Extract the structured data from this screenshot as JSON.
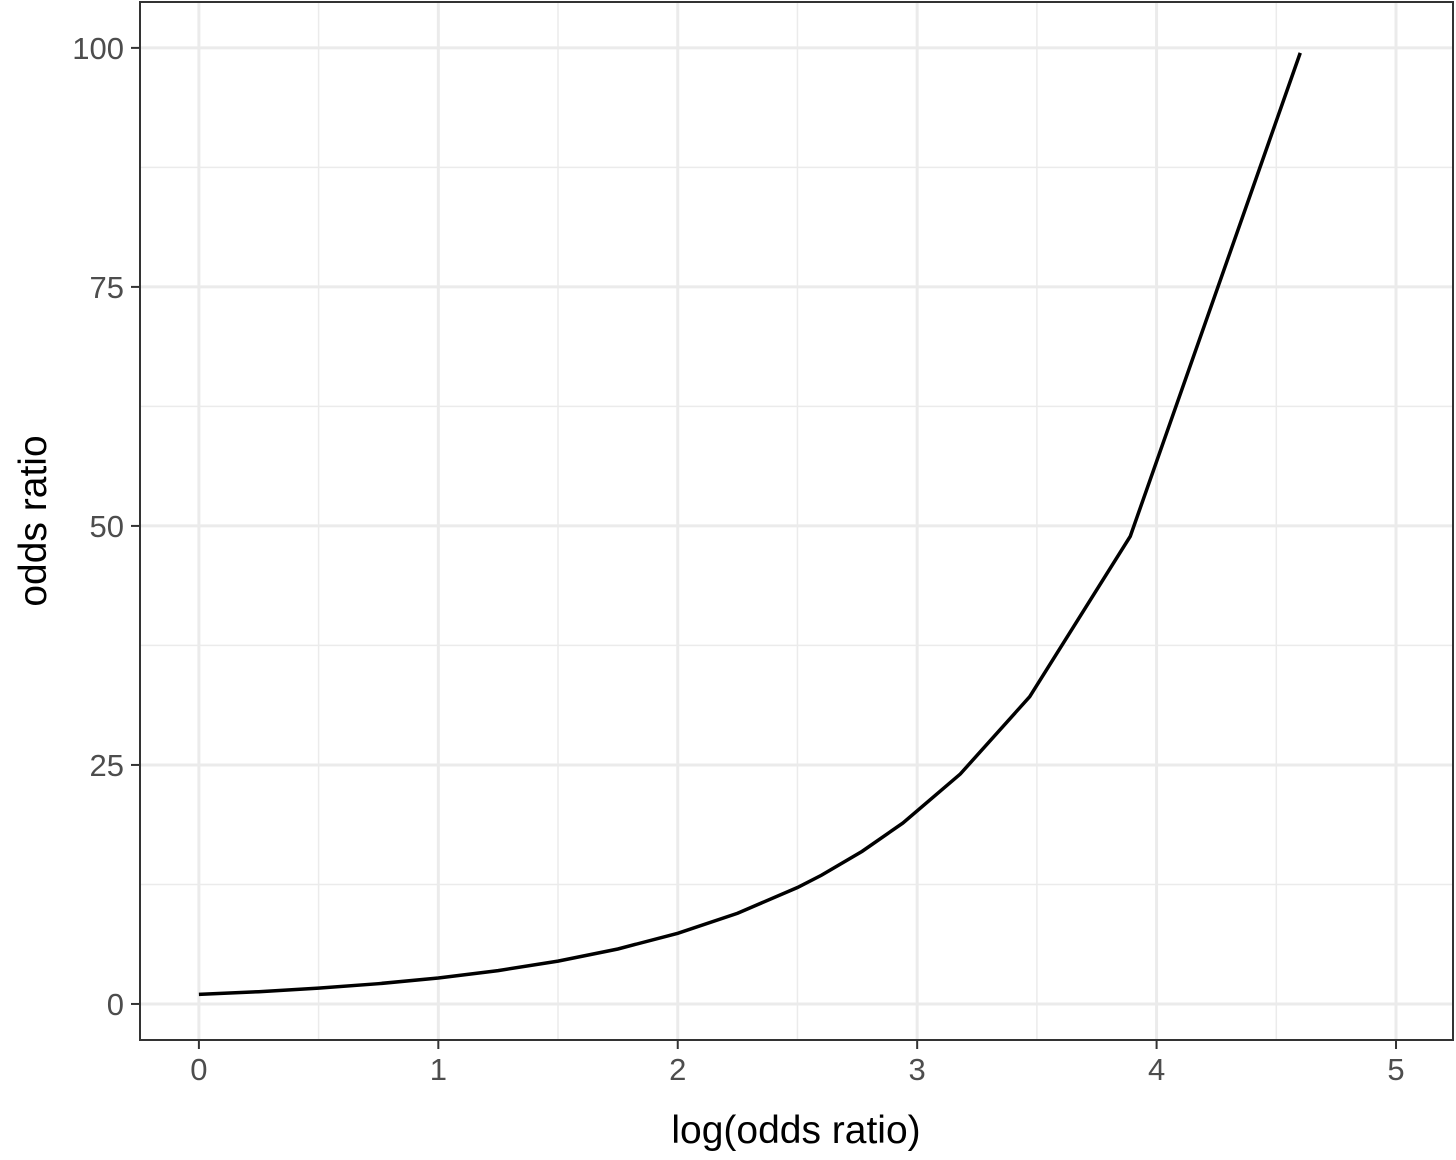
{
  "chart_data": {
    "type": "line",
    "x_label": "log(odds ratio)",
    "y_label": "odds ratio",
    "x": [
      0,
      0.25,
      0.5,
      0.75,
      1,
      1.25,
      1.5,
      1.75,
      2,
      2.25,
      2.5,
      2.6,
      2.77,
      2.94,
      3.18,
      3.47,
      3.89,
      4.6
    ],
    "series": [
      {
        "name": "odds ratio",
        "color": "#000000",
        "values": [
          1,
          1.28,
          1.65,
          2.12,
          2.72,
          3.49,
          4.48,
          5.75,
          7.39,
          9.49,
          12.18,
          13.46,
          15.96,
          18.92,
          24.05,
          32.14,
          48.91,
          99.48
        ]
      }
    ],
    "xlim": [
      -0.246,
      5.238
    ],
    "ylim": [
      -3.77,
      104.8
    ],
    "xticks": [
      0,
      1,
      2,
      3,
      4,
      5
    ],
    "yticks": [
      0,
      25,
      50,
      75,
      100
    ],
    "x_minor_grid": [
      0.5,
      1.5,
      2.5,
      3.5,
      4.5
    ],
    "y_minor_grid": [
      12.5,
      37.5,
      62.5,
      87.5
    ],
    "grid": true
  }
}
